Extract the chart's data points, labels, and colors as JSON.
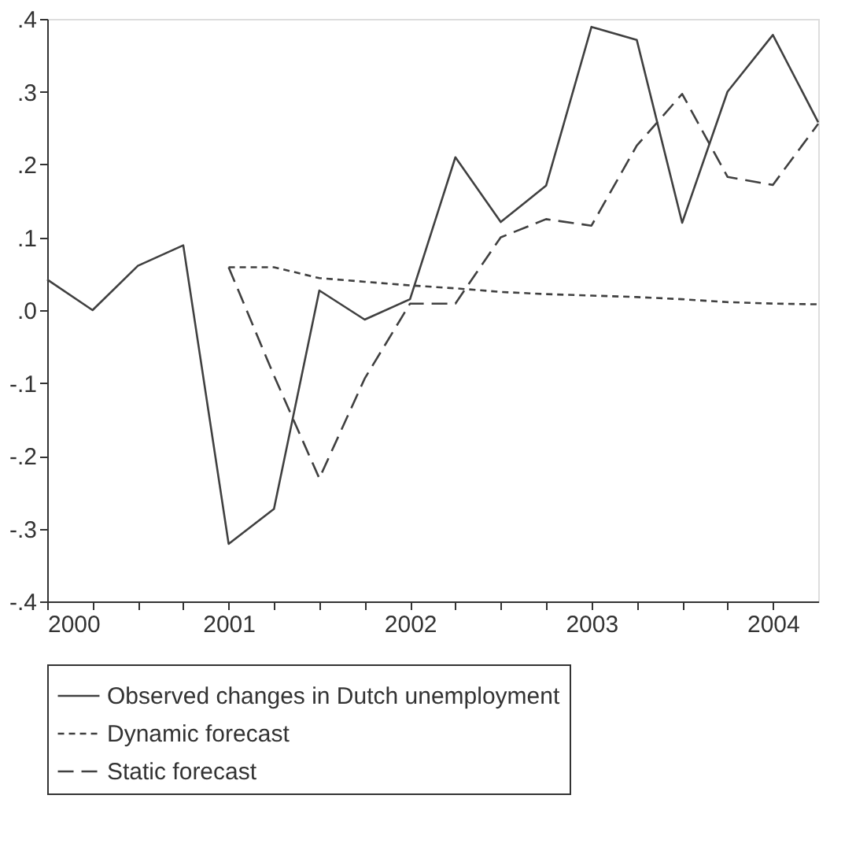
{
  "chart_data": {
    "type": "line",
    "x": [
      2000,
      2000.25,
      2000.5,
      2000.75,
      2001,
      2001.25,
      2001.5,
      2001.75,
      2002,
      2002.25,
      2002.5,
      2002.75,
      2003,
      2003.25,
      2003.5,
      2003.75,
      2004,
      2004.25
    ],
    "series": [
      {
        "name": "Observed changes in Dutch unemployment",
        "color": "#404040",
        "line_style": "solid",
        "values": [
          0.042,
          0.0,
          0.061,
          0.089,
          -0.321,
          -0.273,
          0.027,
          -0.013,
          0.015,
          0.21,
          0.121,
          0.171,
          0.389,
          0.371,
          0.12,
          0.3,
          0.378,
          0.258
        ]
      },
      {
        "name": "Dynamic forecast",
        "color": "#404040",
        "line_style": "dotted",
        "values": [
          null,
          null,
          null,
          null,
          0.059,
          0.059,
          0.044,
          0.039,
          0.034,
          0.03,
          0.025,
          0.022,
          0.02,
          0.018,
          0.015,
          0.011,
          0.009,
          0.008
        ]
      },
      {
        "name": "Static forecast",
        "color": "#404040",
        "line_style": "dashed",
        "values": [
          null,
          null,
          null,
          null,
          0.059,
          -0.09,
          -0.231,
          -0.094,
          0.009,
          0.009,
          0.1,
          0.125,
          0.116,
          0.226,
          0.297,
          0.183,
          0.172,
          0.256
        ]
      }
    ],
    "xlim": [
      2000,
      2004.25
    ],
    "xticks": [
      2000,
      {
        "value": 2000.25,
        "label": null
      },
      {
        "value": 2000.5,
        "label": null
      },
      {
        "value": 2000.75,
        "label": null
      },
      2001,
      {
        "value": 2001.25,
        "label": null
      },
      {
        "value": 2001.5,
        "label": null
      },
      {
        "value": 2001.75,
        "label": null
      },
      2002,
      {
        "value": 2002.25,
        "label": null
      },
      {
        "value": 2002.5,
        "label": null
      },
      {
        "value": 2002.75,
        "label": null
      },
      2003,
      {
        "value": 2003.25,
        "label": null
      },
      {
        "value": 2003.5,
        "label": null
      },
      {
        "value": 2003.75,
        "label": null
      },
      2004
    ],
    "ylim": [
      -0.4,
      0.4
    ],
    "yticks": [
      {
        "value": -0.4,
        "label": "-.4"
      },
      {
        "value": -0.3,
        "label": "-.3"
      },
      {
        "value": -0.2,
        "label": "-.2"
      },
      {
        "value": -0.1,
        "label": "-.1"
      },
      {
        "value": 0,
        "label": ".0"
      },
      {
        "value": 0.1,
        "label": ".1"
      },
      {
        "value": 0.2,
        "label": ".2"
      },
      {
        "value": 0.3,
        "label": ".3"
      },
      {
        "value": 0.4,
        "label": ".4"
      }
    ],
    "grid": false,
    "legend": "bottom"
  }
}
